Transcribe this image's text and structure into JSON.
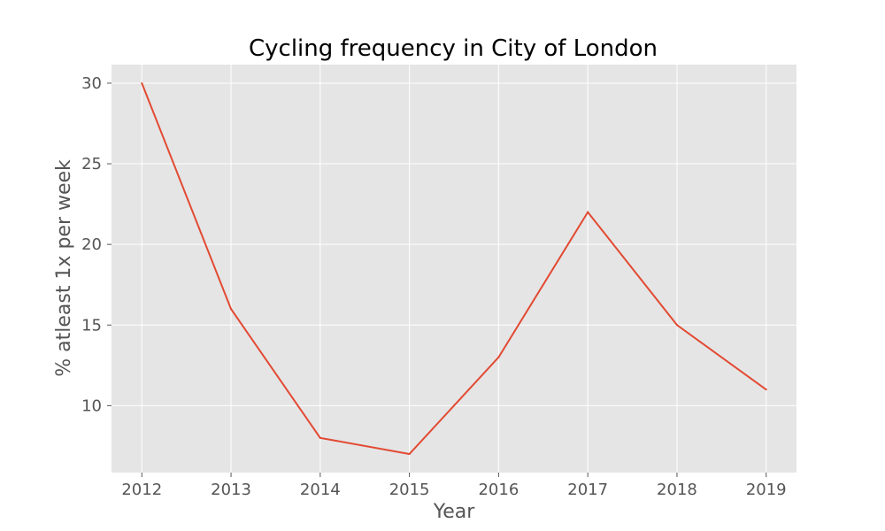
{
  "chart_data": {
    "type": "line",
    "title": "Cycling frequency in City of London",
    "xlabel": "Year",
    "ylabel": "% atleast 1x per week",
    "x": [
      2012,
      2013,
      2014,
      2015,
      2016,
      2017,
      2018,
      2019
    ],
    "series": [
      {
        "values": [
          30,
          16,
          8,
          7,
          13,
          22,
          15,
          11
        ]
      }
    ],
    "xlim": [
      2011.66,
      2019.34
    ],
    "ylim": [
      5.85,
      31.15
    ],
    "xticks": [
      "2012",
      "2013",
      "2014",
      "2015",
      "2016",
      "2017",
      "2018",
      "2019"
    ],
    "yticks": [
      "10",
      "15",
      "20",
      "25",
      "30"
    ],
    "grid": true,
    "colors": {
      "plot_background": "#e5e5e5",
      "grid": "#ffffff",
      "line": "#e24a33",
      "tick_text": "#555555"
    }
  }
}
